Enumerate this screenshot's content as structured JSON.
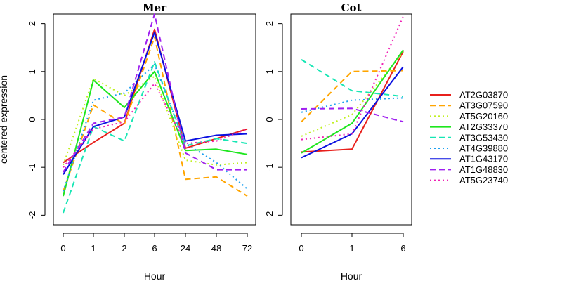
{
  "chart_data": [
    {
      "type": "line",
      "title": "Mer",
      "xlabel": "Hour",
      "ylabel": "centered expression",
      "categories": [
        "0",
        "1",
        "2",
        "6",
        "24",
        "48",
        "72"
      ],
      "yticks": [
        "-2",
        "-1",
        "0",
        "1",
        "2"
      ],
      "ylim": [
        -2.2,
        2.2
      ],
      "grid": false,
      "series": [
        {
          "name": "AT2G03870",
          "values": [
            -0.9,
            -0.48,
            -0.08,
            1.88,
            -0.6,
            -0.4,
            -0.2
          ]
        },
        {
          "name": "AT3G07590",
          "values": [
            -1.5,
            0.3,
            -0.1,
            1.72,
            -1.25,
            -1.2,
            -1.6
          ]
        },
        {
          "name": "AT5G20160",
          "values": [
            -0.95,
            0.85,
            0.5,
            0.9,
            -0.85,
            -0.95,
            -0.9
          ]
        },
        {
          "name": "AT2G33370",
          "values": [
            -1.6,
            0.82,
            0.25,
            1.0,
            -0.65,
            -0.62,
            -0.73
          ]
        },
        {
          "name": "AT3G53430",
          "values": [
            -1.95,
            -0.15,
            -0.45,
            1.2,
            -0.55,
            -0.4,
            -0.5
          ]
        },
        {
          "name": "AT4G39880",
          "values": [
            -1.5,
            0.4,
            0.55,
            1.15,
            -0.5,
            -0.9,
            -1.45
          ]
        },
        {
          "name": "AT1G43170",
          "values": [
            -1.15,
            -0.15,
            0.05,
            1.82,
            -0.45,
            -0.33,
            -0.3
          ]
        },
        {
          "name": "AT1G48830",
          "values": [
            -1.1,
            -0.08,
            0.05,
            2.2,
            -0.7,
            -1.05,
            -1.05
          ]
        },
        {
          "name": "AT5G23740",
          "values": [
            -1.0,
            -0.2,
            -0.05,
            0.75,
            -0.5,
            -0.45,
            -0.2
          ]
        }
      ]
    },
    {
      "type": "line",
      "title": "Cot",
      "xlabel": "Hour",
      "ylabel": "",
      "categories": [
        "0",
        "1",
        "6"
      ],
      "yticks": [
        "-2",
        "-1",
        "0",
        "1",
        "2"
      ],
      "ylim": [
        -2.2,
        2.2
      ],
      "grid": false,
      "series": [
        {
          "name": "AT2G03870",
          "values": [
            -0.68,
            -0.62,
            1.42
          ]
        },
        {
          "name": "AT3G07590",
          "values": [
            -0.05,
            1.0,
            1.02
          ]
        },
        {
          "name": "AT5G20160",
          "values": [
            -0.35,
            0.1,
            1.4
          ]
        },
        {
          "name": "AT2G33370",
          "values": [
            -0.7,
            -0.08,
            1.45
          ]
        },
        {
          "name": "AT3G53430",
          "values": [
            1.25,
            0.6,
            0.48
          ]
        },
        {
          "name": "AT4G39880",
          "values": [
            0.15,
            0.4,
            0.45
          ]
        },
        {
          "name": "AT1G43170",
          "values": [
            -0.8,
            -0.3,
            1.1
          ]
        },
        {
          "name": "AT1G48830",
          "values": [
            0.22,
            0.23,
            -0.05
          ]
        },
        {
          "name": "AT5G23740",
          "values": [
            -0.42,
            -0.3,
            2.15
          ]
        }
      ]
    }
  ],
  "legend": {
    "placement": "right",
    "items": [
      {
        "name": "AT2G03870",
        "color": "#e8201c",
        "dash": "solid"
      },
      {
        "name": "AT3G07590",
        "color": "#ffa500",
        "dash": "dashed"
      },
      {
        "name": "AT5G20160",
        "color": "#c0f020",
        "dash": "dotted"
      },
      {
        "name": "AT2G33370",
        "color": "#1ee61e",
        "dash": "solid"
      },
      {
        "name": "AT3G53430",
        "color": "#16e6b4",
        "dash": "dashed"
      },
      {
        "name": "AT4G39880",
        "color": "#1ca0f0",
        "dash": "dotted"
      },
      {
        "name": "AT1G43170",
        "color": "#0a10e0",
        "dash": "solid"
      },
      {
        "name": "AT1G48830",
        "color": "#a020f0",
        "dash": "dashed"
      },
      {
        "name": "AT5G23740",
        "color": "#f020b4",
        "dash": "dotted"
      }
    ]
  }
}
